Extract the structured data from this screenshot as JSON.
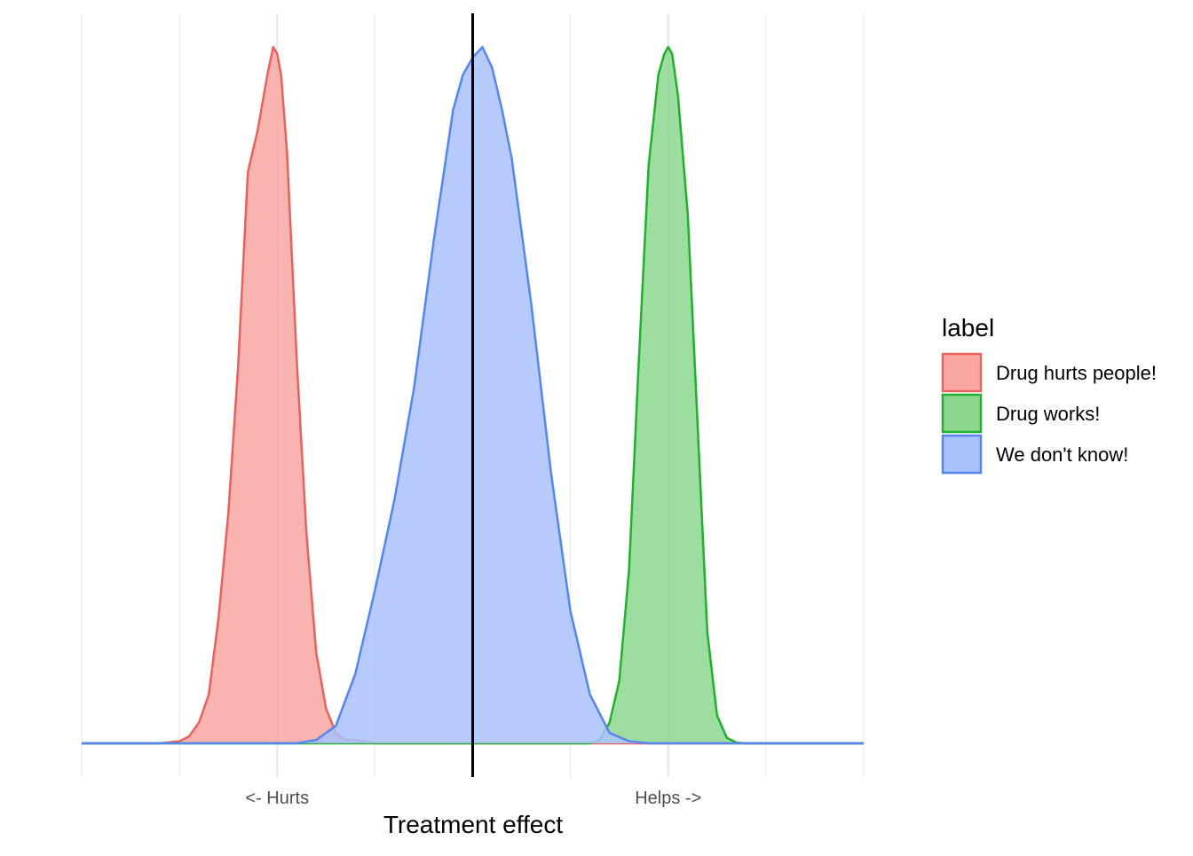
{
  "chart_data": {
    "type": "area",
    "title": "",
    "xlabel": "Treatment effect",
    "ylabel": "",
    "xlim": [
      -2,
      2
    ],
    "ylim": [
      0,
      1.02
    ],
    "x_ticks": [
      {
        "value": -1,
        "label": "<- Hurts"
      },
      {
        "value": 1,
        "label": "Helps ->"
      }
    ],
    "minor_gridlines": [
      -2,
      -1.5,
      -0.5,
      0.5,
      1.5,
      2
    ],
    "reference_line": {
      "x": 0,
      "color": "#000000"
    },
    "grid": true,
    "legend": {
      "title": "label",
      "placement": "right",
      "entries": [
        {
          "label": "Drug hurts people!",
          "fill": "#f8a7a3",
          "stroke": "#e8615a"
        },
        {
          "label": "Drug works!",
          "fill": "#8dd78f",
          "stroke": "#1fb02e"
        },
        {
          "label": "We don't know!",
          "fill": "#a9c2fb",
          "stroke": "#5585f0"
        }
      ]
    },
    "series": [
      {
        "name": "Drug hurts people!",
        "fill": "#f8a7a3",
        "stroke": "#e8615a",
        "x": [
          -2,
          -1.6,
          -1.5,
          -1.45,
          -1.4,
          -1.35,
          -1.3,
          -1.25,
          -1.2,
          -1.15,
          -1.1,
          -1.05,
          -1.02,
          -1.0,
          -0.98,
          -0.95,
          -0.9,
          -0.85,
          -0.8,
          -0.75,
          -0.7,
          -0.65,
          -0.6,
          -0.55,
          -0.5,
          -0.4,
          2
        ],
        "y": [
          0,
          0,
          0.003,
          0.01,
          0.03,
          0.07,
          0.18,
          0.33,
          0.54,
          0.82,
          0.88,
          0.96,
          1.0,
          0.99,
          0.96,
          0.85,
          0.55,
          0.3,
          0.13,
          0.05,
          0.015,
          0.005,
          0.005,
          0.002,
          0,
          0,
          0
        ]
      },
      {
        "name": "Drug works!",
        "fill": "#8dd78f",
        "stroke": "#1fb02e",
        "x": [
          -2,
          0.5,
          0.6,
          0.65,
          0.7,
          0.75,
          0.8,
          0.85,
          0.9,
          0.95,
          0.98,
          1.0,
          1.02,
          1.05,
          1.1,
          1.15,
          1.2,
          1.25,
          1.3,
          1.35,
          1.4,
          2
        ],
        "y": [
          0,
          0,
          0,
          0.005,
          0.03,
          0.09,
          0.25,
          0.55,
          0.83,
          0.96,
          0.99,
          1.0,
          0.99,
          0.93,
          0.76,
          0.46,
          0.16,
          0.04,
          0.008,
          0.001,
          0,
          0
        ]
      },
      {
        "name": "We don't know!",
        "fill": "#a9c2fb",
        "stroke": "#5585f0",
        "x": [
          -2,
          -0.9,
          -0.8,
          -0.7,
          -0.6,
          -0.5,
          -0.4,
          -0.3,
          -0.2,
          -0.1,
          -0.05,
          0.0,
          0.05,
          0.1,
          0.15,
          0.2,
          0.3,
          0.4,
          0.5,
          0.6,
          0.7,
          0.8,
          0.9,
          2
        ],
        "y": [
          0,
          0,
          0.005,
          0.025,
          0.1,
          0.22,
          0.35,
          0.51,
          0.72,
          0.91,
          0.96,
          0.985,
          1.0,
          0.97,
          0.91,
          0.84,
          0.63,
          0.39,
          0.19,
          0.07,
          0.015,
          0.003,
          0,
          0
        ]
      }
    ]
  }
}
